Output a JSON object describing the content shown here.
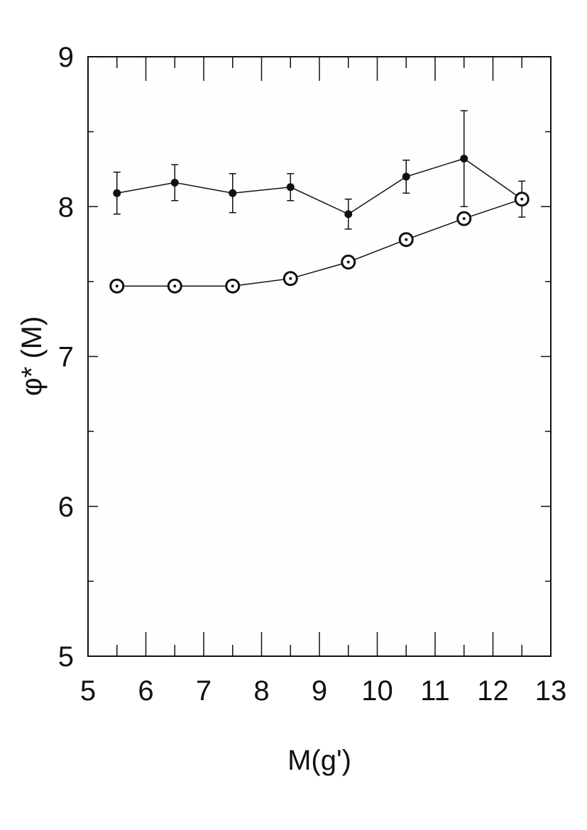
{
  "chart_data": {
    "type": "line",
    "title": "",
    "xlabel": "M(g')",
    "ylabel": "φ* (M)",
    "xlim": [
      5,
      13
    ],
    "ylim": [
      5,
      9
    ],
    "xticks": [
      "5",
      "6",
      "7",
      "8",
      "9",
      "10",
      "11",
      "12",
      "13"
    ],
    "yticks": [
      "5",
      "6",
      "7",
      "8",
      "9"
    ],
    "grid": false,
    "series": [
      {
        "marker": "filled-circle",
        "x": [
          5.5,
          6.5,
          7.5,
          8.5,
          9.5,
          10.5,
          11.5,
          12.5
        ],
        "y": [
          8.09,
          8.16,
          8.09,
          8.13,
          7.95,
          8.2,
          8.32,
          8.05
        ],
        "err": [
          0.14,
          0.12,
          0.13,
          0.09,
          0.1,
          0.11,
          0.32,
          0.12
        ]
      },
      {
        "marker": "open-circle-dot",
        "x": [
          5.5,
          6.5,
          7.5,
          8.5,
          9.5,
          10.5,
          11.5,
          12.5
        ],
        "y": [
          7.47,
          7.47,
          7.47,
          7.52,
          7.63,
          7.78,
          7.92,
          8.05
        ]
      }
    ]
  }
}
